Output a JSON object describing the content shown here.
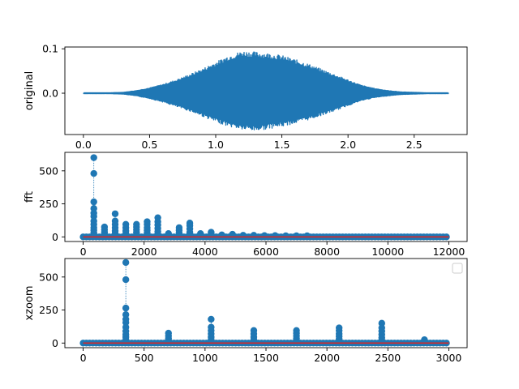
{
  "chart_data": [
    {
      "type": "line",
      "ylabel": "original",
      "xlim": [
        -0.14,
        2.9
      ],
      "ylim": [
        -0.093,
        0.104
      ],
      "xticks": [
        0.0,
        0.5,
        1.0,
        1.5,
        2.0,
        2.5
      ],
      "xtick_labels": [
        "0.0",
        "0.5",
        "1.0",
        "1.5",
        "2.0",
        "2.5"
      ],
      "yticks": [
        0.0,
        0.1
      ],
      "ytick_labels": [
        "0.0",
        "0.1"
      ],
      "series": [
        {
          "color": "#1f77b4",
          "x_range": [
            0.0,
            2.76
          ],
          "envelope": {
            "t": [
              0.0,
              0.2,
              0.3,
              0.4,
              0.5,
              0.6,
              0.7,
              0.8,
              0.9,
              1.0,
              1.1,
              1.2,
              1.3,
              1.4,
              1.5,
              1.6,
              1.7,
              1.8,
              1.9,
              2.0,
              2.1,
              2.2,
              2.3,
              2.4,
              2.5,
              2.6,
              2.76
            ],
            "upper": [
              0.001,
              0.001,
              0.002,
              0.006,
              0.012,
              0.02,
              0.03,
              0.042,
              0.055,
              0.07,
              0.085,
              0.095,
              0.093,
              0.09,
              0.085,
              0.076,
              0.066,
              0.054,
              0.042,
              0.03,
              0.018,
              0.011,
              0.006,
              0.003,
              0.002,
              0.001,
              0.001
            ],
            "lower": [
              -0.001,
              -0.001,
              -0.002,
              -0.006,
              -0.012,
              -0.02,
              -0.03,
              -0.04,
              -0.052,
              -0.065,
              -0.075,
              -0.082,
              -0.085,
              -0.08,
              -0.075,
              -0.068,
              -0.06,
              -0.05,
              -0.04,
              -0.028,
              -0.017,
              -0.01,
              -0.006,
              -0.003,
              -0.002,
              -0.001,
              -0.001
            ]
          }
        }
      ]
    },
    {
      "type": "stem",
      "ylabel": "fft",
      "xlim": [
        -600,
        12600
      ],
      "ylim": [
        -35,
        640
      ],
      "xticks": [
        0,
        2000,
        4000,
        6000,
        8000,
        10000,
        12000
      ],
      "xtick_labels": [
        "0",
        "2000",
        "4000",
        "6000",
        "8000",
        "10000",
        "12000"
      ],
      "yticks": [
        0,
        250,
        500
      ],
      "ytick_labels": [
        "0",
        "250",
        "500"
      ],
      "marker_color": "#1f77b4",
      "baseline_color": "#d62728",
      "baseline_range": [
        0,
        12000
      ],
      "peaks": [
        {
          "x": 350,
          "values": [
            600,
            480,
            265,
            215,
            180,
            155,
            120,
            95,
            70,
            50,
            30
          ]
        },
        {
          "x": 700,
          "values": [
            75,
            55,
            35,
            20
          ]
        },
        {
          "x": 1050,
          "values": [
            175,
            120,
            95,
            70,
            45,
            25
          ]
        },
        {
          "x": 1400,
          "values": [
            95,
            70,
            45,
            25
          ]
        },
        {
          "x": 1750,
          "values": [
            95,
            75,
            55,
            35,
            20
          ]
        },
        {
          "x": 2100,
          "values": [
            115,
            95,
            70,
            50,
            30
          ]
        },
        {
          "x": 2450,
          "values": [
            145,
            115,
            90,
            65,
            40,
            20
          ]
        },
        {
          "x": 2800,
          "values": [
            25,
            15
          ]
        },
        {
          "x": 3150,
          "values": [
            70,
            50,
            30
          ]
        },
        {
          "x": 3500,
          "values": [
            105,
            85,
            60,
            35,
            20
          ]
        },
        {
          "x": 3850,
          "values": [
            25,
            15
          ]
        },
        {
          "x": 4200,
          "values": [
            35,
            22,
            12
          ]
        },
        {
          "x": 4550,
          "values": [
            15
          ]
        },
        {
          "x": 4900,
          "values": [
            20,
            12
          ]
        },
        {
          "x": 5250,
          "values": [
            12
          ]
        },
        {
          "x": 5600,
          "values": [
            12
          ]
        },
        {
          "x": 5950,
          "values": [
            10
          ]
        },
        {
          "x": 6300,
          "values": [
            10
          ]
        },
        {
          "x": 6650,
          "values": [
            8
          ]
        },
        {
          "x": 7000,
          "values": [
            8
          ]
        },
        {
          "x": 7350,
          "values": [
            8
          ]
        }
      ]
    },
    {
      "type": "stem",
      "ylabel": "xzoom",
      "xlim": [
        -150,
        3150
      ],
      "ylim": [
        -35,
        640
      ],
      "xticks": [
        0,
        500,
        1000,
        1500,
        2000,
        2500,
        3000
      ],
      "xtick_labels": [
        "0",
        "500",
        "1000",
        "1500",
        "2000",
        "2500",
        "3000"
      ],
      "yticks": [
        0,
        250,
        500
      ],
      "ytick_labels": [
        "0",
        "250",
        "500"
      ],
      "marker_color": "#1f77b4",
      "baseline_color": "#d62728",
      "baseline_range": [
        0,
        3000
      ],
      "legend": "upper right, empty",
      "peaks": [
        {
          "x": 350,
          "values": [
            610,
            480,
            265,
            215,
            180,
            155,
            120,
            90,
            65,
            45,
            25
          ]
        },
        {
          "x": 700,
          "values": [
            75,
            55,
            35,
            20
          ]
        },
        {
          "x": 1050,
          "values": [
            180,
            120,
            95,
            70,
            45,
            25
          ]
        },
        {
          "x": 1400,
          "values": [
            95,
            70,
            45,
            25
          ]
        },
        {
          "x": 1750,
          "values": [
            95,
            75,
            55,
            35,
            20
          ]
        },
        {
          "x": 2100,
          "values": [
            115,
            95,
            70,
            50,
            30
          ]
        },
        {
          "x": 2450,
          "values": [
            150,
            115,
            90,
            65,
            40,
            20
          ]
        },
        {
          "x": 2800,
          "values": [
            25,
            15
          ]
        }
      ]
    }
  ]
}
